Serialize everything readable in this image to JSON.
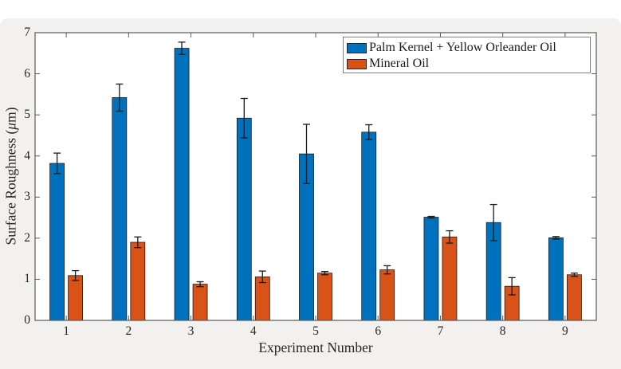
{
  "figure": {
    "page_background": "#ffffff",
    "figure_background": "#f2f1f0",
    "plot_background": "#ffffff",
    "axis_color": "#595959",
    "text_color": "#262626"
  },
  "chart_data": {
    "type": "bar",
    "title": "",
    "xlabel": "Experiment Number",
    "ylabel": "Surface Roughness (μm)",
    "ylabel_parts": {
      "prefix": "Surface Roughness (",
      "mu": "μ",
      "suffix": "m)"
    },
    "categories": [
      "1",
      "2",
      "3",
      "4",
      "5",
      "6",
      "7",
      "8",
      "9"
    ],
    "series": [
      {
        "name": "Palm Kernel + Yellow Orleander Oil",
        "color": "#0072BD",
        "values": [
          3.82,
          5.42,
          6.62,
          4.92,
          4.05,
          4.58,
          2.51,
          2.38,
          2.01
        ],
        "errors": [
          0.25,
          0.33,
          0.15,
          0.48,
          0.72,
          0.18,
          0.02,
          0.44,
          0.03
        ]
      },
      {
        "name": "Mineral Oil",
        "color": "#D95319",
        "values": [
          1.09,
          1.9,
          0.88,
          1.06,
          1.15,
          1.23,
          2.03,
          0.83,
          1.11
        ],
        "errors": [
          0.12,
          0.13,
          0.06,
          0.14,
          0.04,
          0.1,
          0.15,
          0.21,
          0.04
        ]
      }
    ],
    "ylim": [
      0,
      7
    ],
    "yticks": [
      0,
      1,
      2,
      3,
      4,
      5,
      6,
      7
    ],
    "grid": false,
    "legend_position": "northeast",
    "error_bar_color": "#1a1a1a",
    "bar_edge_color": "#1a1a1a"
  }
}
